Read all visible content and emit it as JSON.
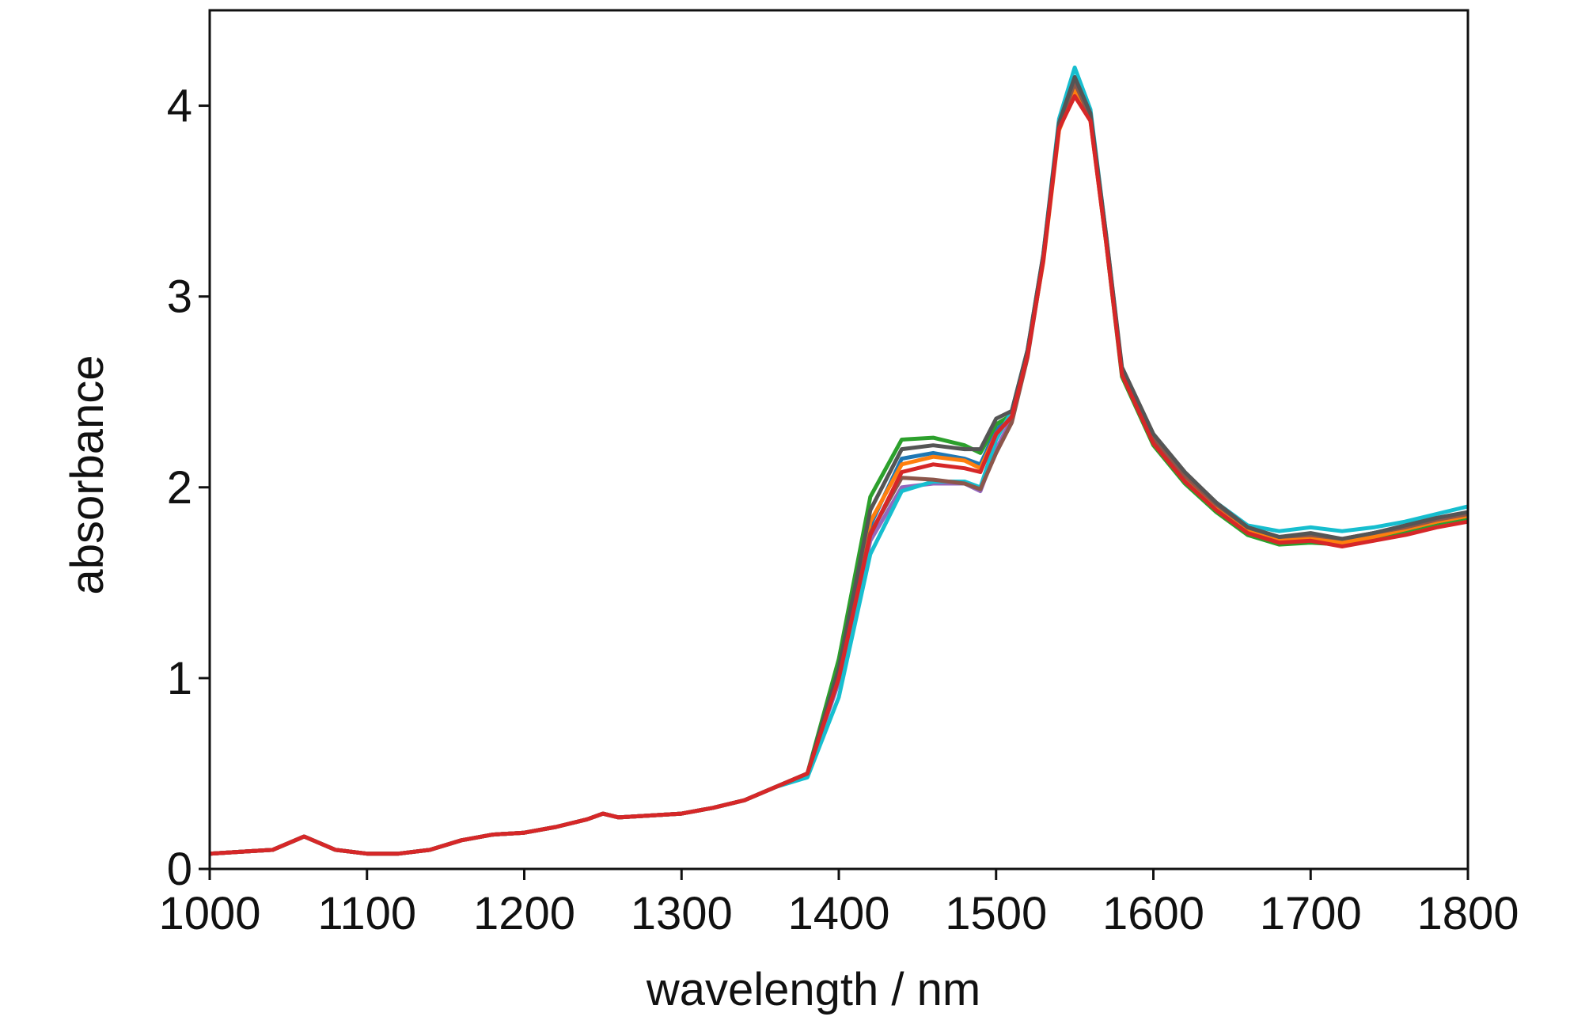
{
  "chart_data": {
    "type": "line",
    "xlabel": "wavelength / nm",
    "ylabel": "absorbance",
    "x": [
      1000,
      1020,
      1040,
      1060,
      1080,
      1100,
      1120,
      1140,
      1160,
      1180,
      1200,
      1220,
      1240,
      1250,
      1260,
      1280,
      1300,
      1320,
      1340,
      1360,
      1380,
      1400,
      1420,
      1440,
      1460,
      1480,
      1490,
      1500,
      1510,
      1520,
      1530,
      1540,
      1550,
      1560,
      1570,
      1580,
      1600,
      1620,
      1640,
      1660,
      1680,
      1700,
      1720,
      1740,
      1760,
      1780,
      1800
    ],
    "xlim": [
      1000,
      1800
    ],
    "xticks": [
      1000,
      1100,
      1200,
      1300,
      1400,
      1500,
      1600,
      1700,
      1800
    ],
    "ylim": [
      0,
      4.5
    ],
    "yticks": [
      0,
      1,
      2,
      3,
      4
    ],
    "series": [
      {
        "color": "#1f77b4",
        "values": [
          0.08,
          0.09,
          0.1,
          0.17,
          0.1,
          0.08,
          0.08,
          0.1,
          0.15,
          0.18,
          0.19,
          0.22,
          0.26,
          0.29,
          0.27,
          0.28,
          0.29,
          0.32,
          0.36,
          0.43,
          0.5,
          1.0,
          1.8,
          2.15,
          2.18,
          2.15,
          2.12,
          2.3,
          2.38,
          2.7,
          3.2,
          3.9,
          4.15,
          3.95,
          3.3,
          2.6,
          2.25,
          2.05,
          1.9,
          1.78,
          1.73,
          1.75,
          1.72,
          1.76,
          1.79,
          1.83,
          1.86
        ]
      },
      {
        "color": "#2ca02c",
        "values": [
          0.08,
          0.09,
          0.1,
          0.17,
          0.1,
          0.08,
          0.08,
          0.1,
          0.15,
          0.18,
          0.19,
          0.22,
          0.26,
          0.29,
          0.27,
          0.28,
          0.29,
          0.32,
          0.36,
          0.43,
          0.5,
          1.1,
          1.95,
          2.25,
          2.26,
          2.22,
          2.18,
          2.33,
          2.38,
          2.7,
          3.2,
          3.88,
          4.1,
          3.93,
          3.28,
          2.58,
          2.22,
          2.02,
          1.87,
          1.75,
          1.7,
          1.71,
          1.7,
          1.73,
          1.77,
          1.81,
          1.84
        ]
      },
      {
        "color": "#9467bd",
        "values": [
          0.08,
          0.09,
          0.1,
          0.17,
          0.1,
          0.08,
          0.08,
          0.1,
          0.15,
          0.18,
          0.19,
          0.22,
          0.26,
          0.29,
          0.27,
          0.28,
          0.29,
          0.32,
          0.36,
          0.43,
          0.5,
          0.98,
          1.72,
          2.0,
          2.02,
          2.02,
          1.98,
          2.2,
          2.36,
          2.69,
          3.2,
          3.9,
          4.14,
          3.95,
          3.3,
          2.6,
          2.25,
          2.05,
          1.9,
          1.78,
          1.73,
          1.74,
          1.72,
          1.75,
          1.78,
          1.82,
          1.85
        ]
      },
      {
        "color": "#17becf",
        "values": [
          0.08,
          0.09,
          0.1,
          0.17,
          0.1,
          0.08,
          0.08,
          0.1,
          0.15,
          0.18,
          0.19,
          0.22,
          0.26,
          0.29,
          0.27,
          0.28,
          0.29,
          0.32,
          0.36,
          0.43,
          0.48,
          0.9,
          1.65,
          1.98,
          2.03,
          2.03,
          2.0,
          2.25,
          2.4,
          2.72,
          3.22,
          3.93,
          4.2,
          3.98,
          3.32,
          2.62,
          2.27,
          2.07,
          1.92,
          1.8,
          1.77,
          1.79,
          1.77,
          1.79,
          1.82,
          1.86,
          1.9
        ]
      },
      {
        "color": "#ff7f0e",
        "values": [
          0.08,
          0.09,
          0.1,
          0.17,
          0.1,
          0.08,
          0.08,
          0.1,
          0.15,
          0.18,
          0.19,
          0.22,
          0.26,
          0.29,
          0.27,
          0.28,
          0.29,
          0.32,
          0.36,
          0.43,
          0.5,
          1.02,
          1.82,
          2.12,
          2.16,
          2.14,
          2.1,
          2.28,
          2.37,
          2.7,
          3.18,
          3.87,
          4.08,
          3.92,
          3.28,
          2.6,
          2.24,
          2.04,
          1.89,
          1.77,
          1.72,
          1.73,
          1.71,
          1.74,
          1.78,
          1.82,
          1.85
        ]
      },
      {
        "color": "#8c564b",
        "values": [
          0.08,
          0.09,
          0.1,
          0.17,
          0.1,
          0.08,
          0.08,
          0.1,
          0.15,
          0.18,
          0.19,
          0.22,
          0.26,
          0.29,
          0.27,
          0.28,
          0.29,
          0.32,
          0.36,
          0.43,
          0.5,
          1.0,
          1.76,
          2.05,
          2.04,
          2.02,
          1.99,
          2.18,
          2.34,
          2.68,
          3.19,
          3.89,
          4.12,
          3.94,
          3.3,
          2.61,
          2.26,
          2.06,
          1.91,
          1.79,
          1.74,
          1.75,
          1.73,
          1.76,
          1.79,
          1.83,
          1.86
        ]
      },
      {
        "color": "#555555",
        "values": [
          0.08,
          0.09,
          0.1,
          0.17,
          0.1,
          0.08,
          0.08,
          0.1,
          0.15,
          0.18,
          0.19,
          0.22,
          0.26,
          0.29,
          0.27,
          0.28,
          0.29,
          0.32,
          0.36,
          0.43,
          0.5,
          1.05,
          1.88,
          2.2,
          2.22,
          2.2,
          2.2,
          2.36,
          2.4,
          2.72,
          3.22,
          3.91,
          4.15,
          3.96,
          3.32,
          2.63,
          2.28,
          2.08,
          1.92,
          1.79,
          1.74,
          1.76,
          1.73,
          1.76,
          1.8,
          1.84,
          1.87
        ]
      },
      {
        "color": "#d62728",
        "values": [
          0.08,
          0.09,
          0.1,
          0.17,
          0.1,
          0.08,
          0.08,
          0.1,
          0.15,
          0.18,
          0.19,
          0.22,
          0.26,
          0.29,
          0.27,
          0.28,
          0.29,
          0.32,
          0.36,
          0.43,
          0.5,
          1.0,
          1.75,
          2.08,
          2.12,
          2.1,
          2.08,
          2.28,
          2.37,
          2.69,
          3.19,
          3.88,
          4.05,
          3.92,
          3.28,
          2.59,
          2.23,
          2.03,
          1.88,
          1.76,
          1.71,
          1.72,
          1.69,
          1.72,
          1.75,
          1.79,
          1.82
        ]
      }
    ]
  }
}
